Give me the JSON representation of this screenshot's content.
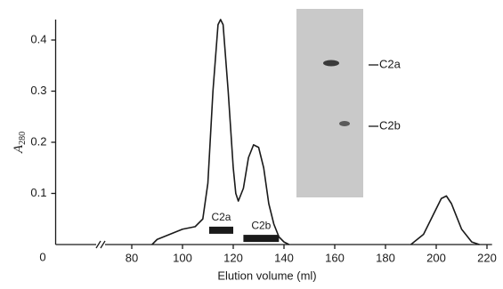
{
  "chart_data": {
    "type": "line",
    "x_label": "Elution volume (ml)",
    "y_label": "A",
    "y_label_subscript": "280",
    "x_origin_label": "0",
    "x": [
      88,
      90,
      95,
      100,
      105,
      108,
      110,
      112,
      114,
      115,
      116,
      118,
      120,
      121,
      122,
      124,
      126,
      128,
      130,
      132,
      134,
      136,
      138,
      140,
      142,
      165,
      190,
      195,
      198,
      202,
      204,
      206,
      210,
      214,
      217
    ],
    "series": [
      {
        "color": "#1a1a1a",
        "values": [
          0.0,
          0.01,
          0.02,
          0.03,
          0.035,
          0.05,
          0.12,
          0.3,
          0.43,
          0.44,
          0.43,
          0.3,
          0.15,
          0.1,
          0.085,
          0.11,
          0.17,
          0.195,
          0.19,
          0.15,
          0.08,
          0.04,
          0.015,
          0.005,
          0.0,
          null,
          0.0,
          0.02,
          0.05,
          0.09,
          0.095,
          0.08,
          0.03,
          0.005,
          0.0
        ]
      }
    ],
    "xlim": [
      50,
      222
    ],
    "xticks": [
      80,
      100,
      120,
      140,
      160,
      180,
      200,
      220
    ],
    "ylim": [
      0,
      0.44
    ],
    "yticks": [
      0.1,
      0.2,
      0.3,
      0.4
    ],
    "grid": false,
    "fractions": [
      {
        "label": "C2a",
        "start": 110.5,
        "end": 120,
        "level": 0.028
      },
      {
        "label": "C2b",
        "start": 124,
        "end": 138,
        "level": 0.012
      }
    ],
    "gel_labels": [
      "C2a",
      "C2b"
    ]
  }
}
